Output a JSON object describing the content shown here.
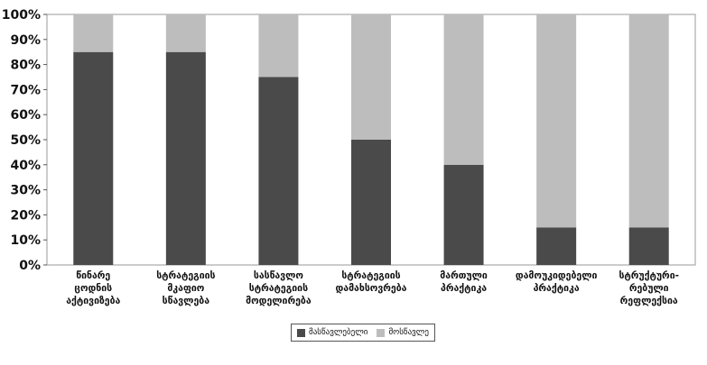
{
  "chart_data": {
    "type": "bar",
    "stacked": true,
    "categories": [
      [
        "წინარე",
        "ცოდნის",
        "აქტივიზება"
      ],
      [
        "სტრატეგიის",
        "მკაფიო",
        "სწავლება"
      ],
      [
        "სასწავლო",
        "სტრატეგიის",
        "მოდელირება"
      ],
      [
        "სტრატეგიის",
        "დამახსოვრება"
      ],
      [
        "მართული",
        "პრაქტიკა"
      ],
      [
        "დამოუკიდებელი",
        "პრაქტიკა"
      ],
      [
        "სტრუქტური-",
        "რებული",
        "რეფლექსია"
      ]
    ],
    "series": [
      {
        "name": "მასწავლებელი",
        "color": "#4a4a4a",
        "values": [
          85,
          85,
          75,
          50,
          40,
          15,
          15
        ]
      },
      {
        "name": "მოსწავლე",
        "color": "#bdbdbd",
        "values": [
          15,
          15,
          25,
          50,
          60,
          85,
          85
        ]
      }
    ],
    "ylim": [
      0,
      100
    ],
    "yticks": [
      "0%",
      "10%",
      "20%",
      "30%",
      "40%",
      "50%",
      "60%",
      "70%",
      "80%",
      "90%",
      "100%"
    ],
    "legend_position": "bottom",
    "grid": false
  }
}
